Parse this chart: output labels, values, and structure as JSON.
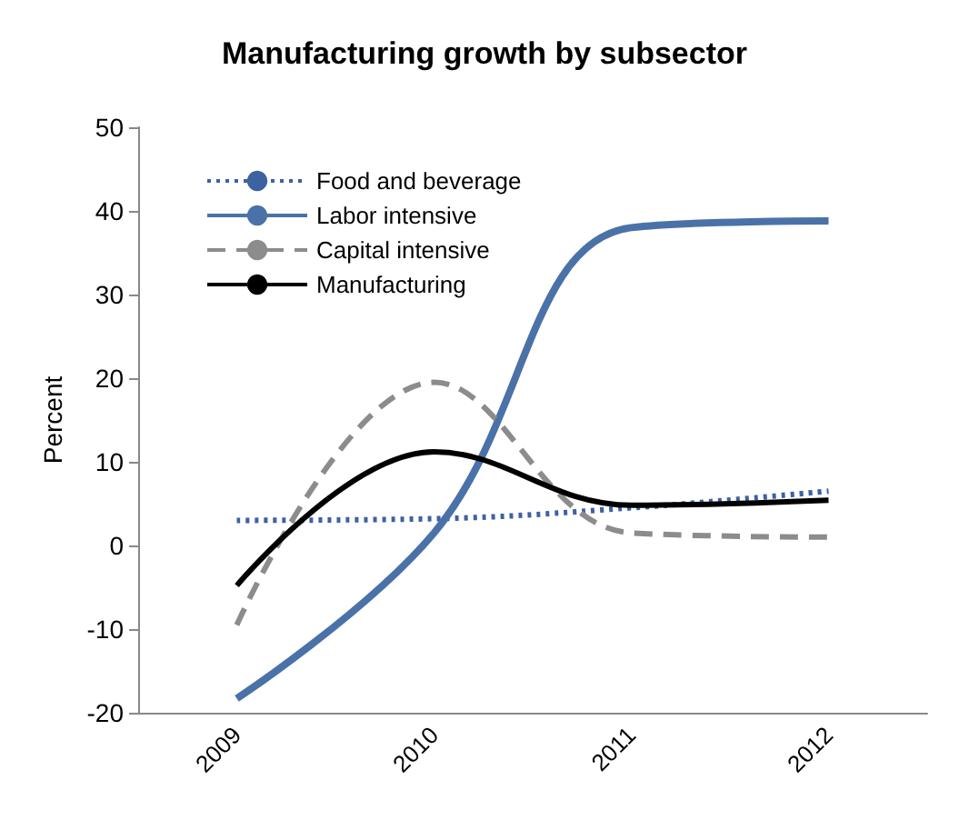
{
  "chart_data": {
    "type": "line",
    "title": "Manufacturing growth by subsector",
    "ylabel": "Percent",
    "categories": [
      "2009",
      "2010",
      "2011",
      "2012"
    ],
    "series": [
      {
        "name": "Food and beverage",
        "color": "#3d62a0",
        "line_style": "dotted",
        "values": [
          3,
          3.2,
          4.5,
          6.5
        ]
      },
      {
        "name": "Labor intensive",
        "color": "#4a72a8",
        "line_style": "solid",
        "values": [
          -18.3,
          1.5,
          38,
          38.8
        ]
      },
      {
        "name": "Capital intensive",
        "color": "#8c8c8c",
        "line_style": "dashed",
        "values": [
          -9.5,
          19.5,
          1.5,
          1
        ]
      },
      {
        "name": "Manufacturing",
        "color": "#000000",
        "line_style": "solid",
        "values": [
          -4.8,
          11.2,
          4.8,
          5.4
        ]
      }
    ],
    "ylim": [
      -20,
      50
    ],
    "yticks": [
      -20,
      -10,
      0,
      10,
      20,
      30,
      40,
      50
    ],
    "grid": false,
    "legend": "top left",
    "marker": "none"
  }
}
